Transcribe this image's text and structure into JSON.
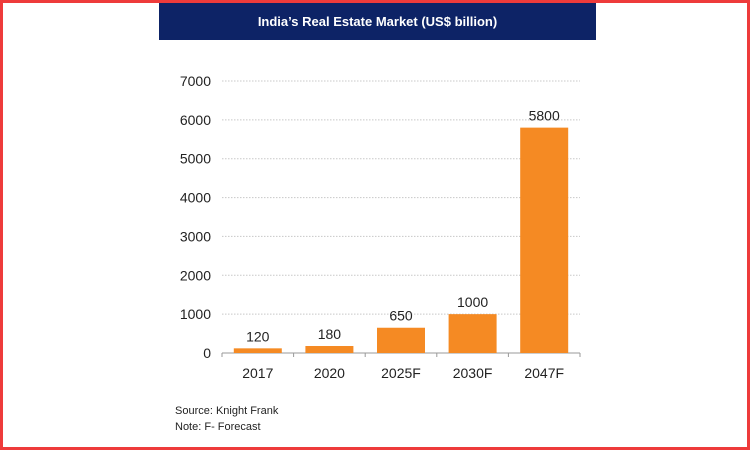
{
  "chart_data": {
    "type": "bar",
    "title": "India’s Real Estate Market (US$ billion)",
    "categories": [
      "2017",
      "2020",
      "2025F",
      "2030F",
      "2047F"
    ],
    "values": [
      120,
      180,
      650,
      1000,
      5800
    ],
    "data_labels": [
      "120",
      "180",
      "650",
      "1000",
      "5800"
    ],
    "xlabel": "",
    "ylabel": "",
    "ylim": [
      0,
      7000
    ],
    "yticks": [
      0,
      1000,
      2000,
      3000,
      4000,
      5000,
      6000,
      7000
    ],
    "grid": true,
    "bar_color": "#f58a23",
    "header_color": "#0d2366",
    "border_color": "#ee3b3b"
  },
  "footer": {
    "source": "Source: Knight Frank",
    "note": "Note: F- Forecast"
  }
}
